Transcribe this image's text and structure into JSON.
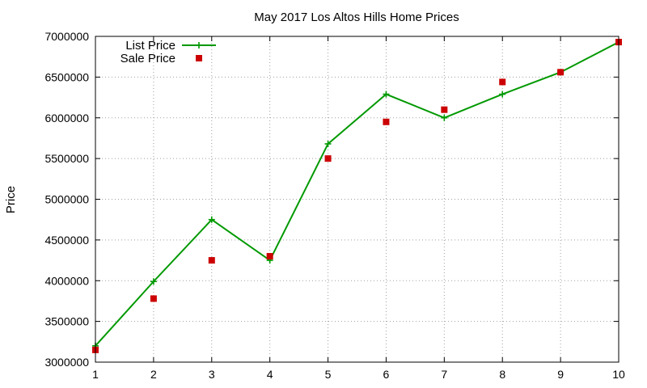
{
  "chart_data": {
    "type": "line",
    "title": "May 2017 Los Altos Hills Home Prices",
    "xlabel": "",
    "ylabel": "Price",
    "xlim": [
      1,
      10
    ],
    "ylim": [
      3000000,
      7000000
    ],
    "x_ticks": [
      1,
      2,
      3,
      4,
      5,
      6,
      7,
      8,
      9,
      10
    ],
    "y_ticks": [
      3000000,
      3500000,
      4000000,
      4500000,
      5000000,
      5500000,
      6000000,
      6500000,
      7000000
    ],
    "grid": true,
    "legend_position": "top-left",
    "series": [
      {
        "name": "List Price",
        "style": "line-with-plus-markers",
        "color": "#009900",
        "x": [
          1,
          2,
          3,
          4,
          5,
          6,
          7,
          8,
          9,
          10
        ],
        "y": [
          3200000,
          3990000,
          4750000,
          4250000,
          5680000,
          6290000,
          6000000,
          6290000,
          6560000,
          6930000
        ]
      },
      {
        "name": "Sale Price",
        "style": "square-points",
        "color": "#cc0000",
        "x": [
          1,
          2,
          3,
          4,
          5,
          6,
          7,
          8,
          9,
          10
        ],
        "y": [
          3150000,
          3780000,
          4250000,
          4300000,
          5500000,
          5950000,
          6100000,
          6440000,
          6560000,
          6930000
        ]
      }
    ]
  }
}
